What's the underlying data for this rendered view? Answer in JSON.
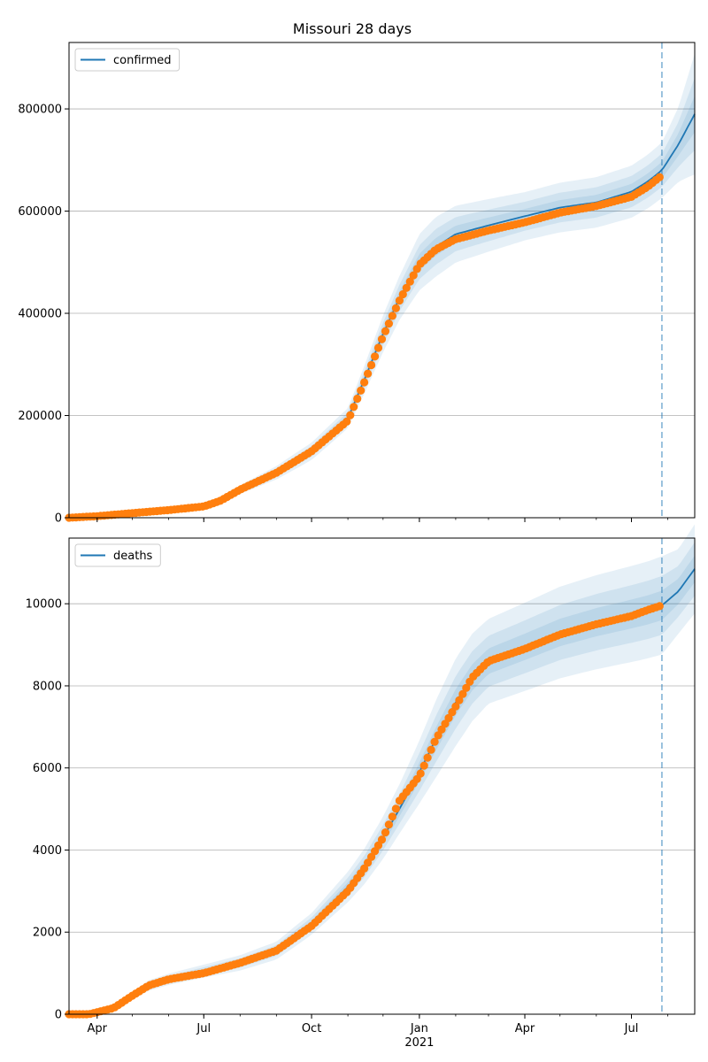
{
  "title": "Missouri 28 days",
  "colors": {
    "fit_line": "#1f77b4",
    "band": "#1f77b4",
    "observed": "#ff7f0e",
    "grid": "#b0b0b0",
    "forecast_line": "#1f77b4"
  },
  "chart_data": [
    {
      "type": "line",
      "panel": "top",
      "legend": [
        "confirmed"
      ],
      "legend_position": "upper-left",
      "grid": "horizontal",
      "xlim": [
        "2020-03-08",
        "2021-08-24"
      ],
      "ylim": [
        0,
        930000
      ],
      "yticks": [
        0,
        200000,
        400000,
        600000,
        800000
      ],
      "ytick_labels": [
        "0",
        "200000",
        "400000",
        "600000",
        "800000"
      ],
      "forecast_start": "2021-07-27",
      "series": [
        {
          "name": "confirmed",
          "kind": "fit",
          "x": [
            "2020-03-08",
            "2020-04-01",
            "2020-05-01",
            "2020-06-01",
            "2020-07-01",
            "2020-07-15",
            "2020-08-01",
            "2020-09-01",
            "2020-10-01",
            "2020-11-01",
            "2020-11-15",
            "2020-12-01",
            "2020-12-15",
            "2021-01-01",
            "2021-01-15",
            "2021-02-01",
            "2021-03-01",
            "2021-04-01",
            "2021-05-01",
            "2021-06-01",
            "2021-07-01",
            "2021-07-15",
            "2021-07-27",
            "2021-08-10",
            "2021-08-24"
          ],
          "y": [
            0,
            3000,
            9000,
            15000,
            22000,
            33000,
            55000,
            88000,
            130000,
            195000,
            270000,
            360000,
            430000,
            500000,
            530000,
            555000,
            572000,
            590000,
            607000,
            617000,
            638000,
            658000,
            680000,
            730000,
            790000
          ]
        },
        {
          "name": "confirmed",
          "kind": "observed",
          "x": [
            "2020-03-08",
            "2020-04-01",
            "2020-05-01",
            "2020-06-01",
            "2020-07-01",
            "2020-07-15",
            "2020-08-01",
            "2020-09-01",
            "2020-10-01",
            "2020-11-01",
            "2020-11-15",
            "2020-12-01",
            "2020-12-15",
            "2021-01-01",
            "2021-01-15",
            "2021-02-01",
            "2021-03-01",
            "2021-04-01",
            "2021-05-01",
            "2021-06-01",
            "2021-07-01",
            "2021-07-15",
            "2021-07-27"
          ],
          "y": [
            0,
            3000,
            9000,
            15000,
            22000,
            33000,
            55000,
            88000,
            130000,
            190000,
            265000,
            355000,
            425000,
            495000,
            525000,
            545000,
            562000,
            578000,
            597000,
            610000,
            628000,
            648000,
            670000
          ]
        },
        {
          "name": "confirmed",
          "kind": "band",
          "x": [
            "2020-03-08",
            "2020-04-01",
            "2020-05-01",
            "2020-06-01",
            "2020-07-01",
            "2020-07-15",
            "2020-08-01",
            "2020-09-01",
            "2020-10-01",
            "2020-11-01",
            "2020-11-15",
            "2020-12-01",
            "2020-12-15",
            "2021-01-01",
            "2021-01-15",
            "2021-02-01",
            "2021-03-01",
            "2021-04-01",
            "2021-05-01",
            "2021-06-01",
            "2021-07-01",
            "2021-07-15",
            "2021-07-27",
            "2021-08-10",
            "2021-08-24"
          ],
          "rel_width": [
            0.15,
            0.15,
            0.15,
            0.15,
            0.15,
            0.15,
            0.15,
            0.15,
            0.13,
            0.1,
            0.1,
            0.1,
            0.1,
            0.11,
            0.11,
            0.1,
            0.09,
            0.08,
            0.08,
            0.08,
            0.08,
            0.08,
            0.08,
            0.1,
            0.15
          ]
        }
      ]
    },
    {
      "type": "line",
      "panel": "bottom",
      "legend": [
        "deaths"
      ],
      "legend_position": "upper-left",
      "grid": "horizontal",
      "xlim": [
        "2020-03-08",
        "2021-08-24"
      ],
      "ylim": [
        0,
        11600
      ],
      "yticks": [
        0,
        2000,
        4000,
        6000,
        8000,
        10000
      ],
      "ytick_labels": [
        "0",
        "2000",
        "4000",
        "6000",
        "8000",
        "10000"
      ],
      "xticks": [
        "2020-04-01",
        "2020-07-01",
        "2020-10-01",
        "2021-01-01",
        "2021-04-01",
        "2021-07-01"
      ],
      "xtick_labels": [
        "Apr",
        "Jul",
        "Oct",
        "Jan",
        "Apr",
        "Jul"
      ],
      "xtick_sublabels": [
        "",
        "",
        "",
        "2021",
        "",
        ""
      ],
      "forecast_start": "2021-07-27",
      "series": [
        {
          "name": "deaths",
          "kind": "fit",
          "x": [
            "2020-03-08",
            "2020-03-25",
            "2020-04-15",
            "2020-05-01",
            "2020-05-15",
            "2020-06-01",
            "2020-07-01",
            "2020-08-01",
            "2020-09-01",
            "2020-10-01",
            "2020-11-01",
            "2020-11-15",
            "2020-12-01",
            "2020-12-15",
            "2021-01-01",
            "2021-01-15",
            "2021-02-01",
            "2021-02-15",
            "2021-03-01",
            "2021-04-01",
            "2021-05-01",
            "2021-06-01",
            "2021-07-01",
            "2021-07-15",
            "2021-07-27",
            "2021-08-10",
            "2021-08-24"
          ],
          "y": [
            0,
            0,
            150,
            450,
            700,
            850,
            1050,
            1250,
            1550,
            2200,
            3100,
            3600,
            4300,
            5000,
            5900,
            6700,
            7600,
            8200,
            8600,
            8950,
            9300,
            9550,
            9750,
            9850,
            9960,
            10300,
            10850
          ]
        },
        {
          "name": "deaths",
          "kind": "observed",
          "x": [
            "2020-03-08",
            "2020-03-25",
            "2020-04-15",
            "2020-05-01",
            "2020-05-15",
            "2020-06-01",
            "2020-07-01",
            "2020-08-01",
            "2020-09-01",
            "2020-10-01",
            "2020-11-01",
            "2020-11-15",
            "2020-12-01",
            "2020-12-15",
            "2021-01-01",
            "2021-01-15",
            "2021-02-01",
            "2021-02-15",
            "2021-03-01",
            "2021-04-01",
            "2021-05-01",
            "2021-06-01",
            "2021-07-01",
            "2021-07-15",
            "2021-07-27"
          ],
          "y": [
            0,
            0,
            150,
            450,
            700,
            850,
            1000,
            1250,
            1550,
            2150,
            3000,
            3550,
            4300,
            5200,
            5800,
            6700,
            7500,
            8200,
            8600,
            8900,
            9250,
            9500,
            9700,
            9850,
            9960
          ]
        },
        {
          "name": "deaths",
          "kind": "band",
          "x": [
            "2020-03-08",
            "2020-03-25",
            "2020-04-15",
            "2020-05-01",
            "2020-05-15",
            "2020-06-01",
            "2020-07-01",
            "2020-08-01",
            "2020-09-01",
            "2020-10-01",
            "2020-11-01",
            "2020-11-15",
            "2020-12-01",
            "2020-12-15",
            "2021-01-01",
            "2021-01-15",
            "2021-02-01",
            "2021-02-15",
            "2021-03-01",
            "2021-04-01",
            "2021-05-01",
            "2021-06-01",
            "2021-07-01",
            "2021-07-15",
            "2021-07-27",
            "2021-08-10",
            "2021-08-24"
          ],
          "rel_width": [
            0.2,
            0.2,
            0.2,
            0.2,
            0.18,
            0.16,
            0.15,
            0.15,
            0.14,
            0.12,
            0.12,
            0.12,
            0.12,
            0.12,
            0.13,
            0.14,
            0.14,
            0.13,
            0.12,
            0.12,
            0.12,
            0.12,
            0.12,
            0.12,
            0.12,
            0.1,
            0.1
          ]
        }
      ]
    }
  ]
}
